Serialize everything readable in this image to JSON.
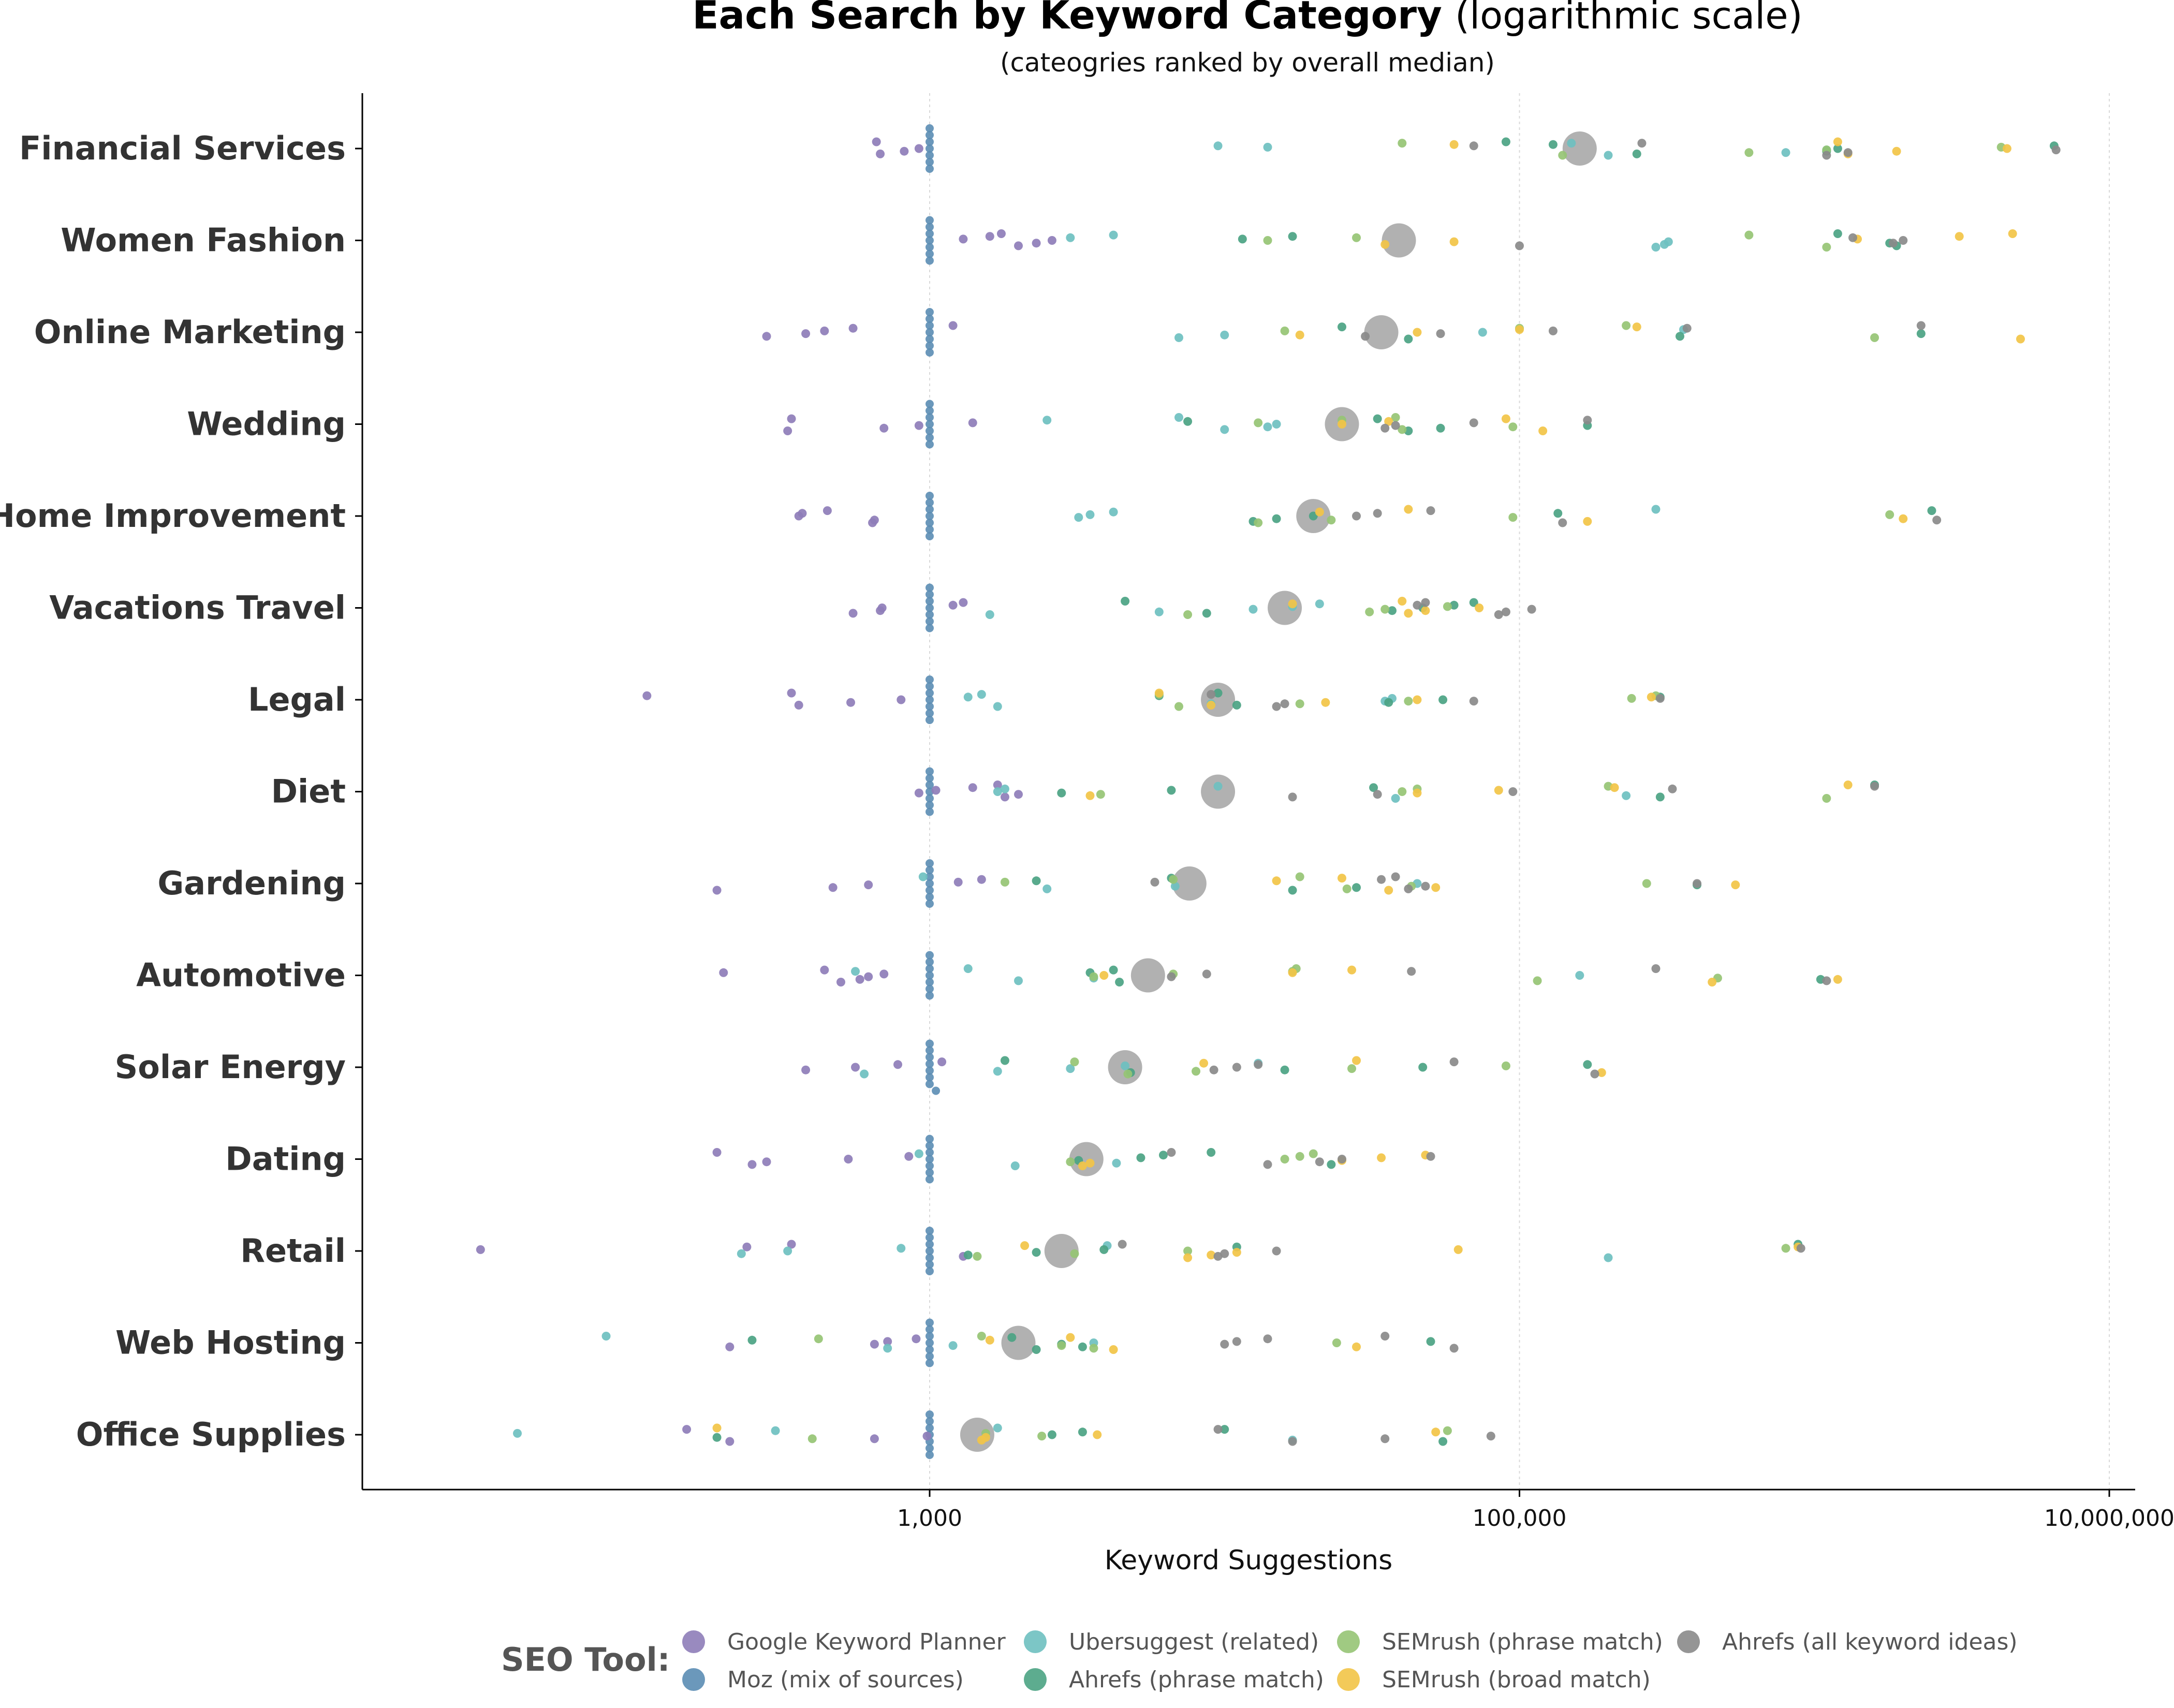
{
  "chart_data": {
    "type": "scatter",
    "title": "Each Search by Keyword Category",
    "title_suffix": "(logarithmic scale)",
    "subtitle": "(cateogries ranked by overall median)",
    "xlabel": "Keyword Suggestions",
    "x_scale": "log10",
    "xlim": [
      10,
      10000000
    ],
    "x_ticks": [
      {
        "value": 1000,
        "label": "1,000"
      },
      {
        "value": 100000,
        "label": "100,000"
      },
      {
        "value": 10000000,
        "label": "10,000,000"
      }
    ],
    "grid": {
      "vertical_major": true,
      "horizontal": false
    },
    "legend": {
      "title": "SEO Tool:",
      "position": "bottom",
      "items": [
        {
          "key": "gkp",
          "name": "Google Keyword Planner",
          "color": "#8E7DB8"
        },
        {
          "key": "moz",
          "name": "Moz (mix of sources)",
          "color": "#5B8DB4"
        },
        {
          "key": "ubs",
          "name": "Ubersuggest (related)",
          "color": "#6EC0C0"
        },
        {
          "key": "ahp",
          "name": "Ahrefs (phrase match)",
          "color": "#4BA383"
        },
        {
          "key": "smp",
          "name": "SEMrush (phrase match)",
          "color": "#96C474"
        },
        {
          "key": "smb",
          "name": "SEMrush (broad match)",
          "color": "#F2C447"
        },
        {
          "key": "aha",
          "name": "Ahrefs (all keyword ideas)",
          "color": "#8A8A8A"
        }
      ]
    },
    "median_marker_color": "#A9A9A9",
    "categories": [
      {
        "name": "Financial Services",
        "median": 160000,
        "values": {
          "gkp": [
            660,
            680,
            820,
            920
          ],
          "moz": [
            1000,
            1000,
            1000,
            1000,
            1000,
            1000,
            1000
          ],
          "ubs": [
            9500,
            150000,
            200000,
            800000,
            1100000,
            14000
          ],
          "ahp": [
            130000,
            90000,
            250000,
            1100000,
            1200000,
            6500000
          ],
          "smp": [
            40000,
            140000,
            600000,
            1100000,
            4300000
          ],
          "smb": [
            60000,
            1200000,
            1300000,
            1900000,
            4500000
          ],
          "aha": [
            70000,
            260000,
            1100000,
            1300000,
            6600000
          ]
        }
      },
      {
        "name": "Women Fashion",
        "median": 39000,
        "values": {
          "gkp": [
            1300,
            1600,
            1750,
            2000,
            2300,
            2600
          ],
          "moz": [
            1000,
            1000,
            1000,
            1000,
            1000,
            1000,
            1000
          ],
          "ubs": [
            3000,
            4200,
            290000,
            310000,
            320000
          ],
          "ahp": [
            11500,
            17000,
            1200000,
            1900000,
            1800000
          ],
          "smp": [
            14000,
            28000,
            600000,
            1100000
          ],
          "smb": [
            35000,
            60000,
            1400000,
            3100000,
            4700000
          ],
          "aha": [
            100000,
            1850000,
            2000000,
            1350000
          ]
        }
      },
      {
        "name": "Online Marketing",
        "median": 34000,
        "values": {
          "gkp": [
            280,
            380,
            440,
            550,
            1200
          ],
          "moz": [
            1000,
            1000,
            1000,
            1000,
            1000,
            1000,
            1000
          ],
          "ubs": [
            7000,
            10000,
            75000,
            360000
          ],
          "ahp": [
            25000,
            42000,
            350000,
            2300000
          ],
          "smp": [
            16000,
            100000,
            230000,
            1600000
          ],
          "smb": [
            18000,
            45000,
            100000,
            250000,
            5000000
          ],
          "aha": [
            30000,
            54000,
            130000,
            370000,
            2300000
          ]
        }
      },
      {
        "name": "Wedding",
        "median": 25000,
        "values": {
          "gkp": [
            340,
            330,
            700,
            920,
            1400
          ],
          "moz": [
            1000,
            1000,
            1000,
            1000,
            1000,
            1000,
            1000
          ],
          "ubs": [
            2500,
            7000,
            10000,
            14000,
            15000
          ],
          "ahp": [
            7500,
            33000,
            42000,
            54000,
            170000
          ],
          "smp": [
            13000,
            25000,
            38000,
            40000,
            95000
          ],
          "smb": [
            25000,
            36000,
            90000,
            120000
          ],
          "aha": [
            35000,
            38000,
            70000,
            170000
          ]
        }
      },
      {
        "name": "Home Improvement",
        "median": 20000,
        "values": {
          "gkp": [
            360,
            370,
            450,
            640,
            650
          ],
          "moz": [
            1000,
            1000,
            1000,
            1000,
            1000,
            1000,
            1000
          ],
          "ubs": [
            3200,
            3500,
            4200,
            290000
          ],
          "ahp": [
            12500,
            15000,
            20000,
            135000,
            2500000
          ],
          "smp": [
            13000,
            23000,
            95000,
            1800000
          ],
          "smb": [
            21000,
            42000,
            170000,
            2000000
          ],
          "aha": [
            28000,
            33000,
            50000,
            140000,
            2600000
          ]
        }
      },
      {
        "name": "Vacations Travel",
        "median": 16000,
        "values": {
          "gkp": [
            550,
            680,
            690,
            1200,
            1300
          ],
          "moz": [
            1000,
            1000,
            1000,
            1000,
            1000,
            1000,
            1000
          ],
          "ubs": [
            1600,
            6000,
            12500,
            17000,
            21000
          ],
          "ahp": [
            4600,
            8700,
            37000,
            47000,
            60000,
            70000
          ],
          "smp": [
            7500,
            31000,
            35000,
            57000
          ],
          "smb": [
            17000,
            40000,
            42000,
            48000,
            73000
          ],
          "aha": [
            45000,
            48000,
            85000,
            90000,
            110000
          ]
        }
      },
      {
        "name": "Legal",
        "median": 9500,
        "values": {
          "gkp": [
            110,
            340,
            360,
            540,
            800
          ],
          "moz": [
            1000,
            1000,
            1000,
            1000,
            1000,
            1000,
            1000
          ],
          "ubs": [
            1350,
            1500,
            1700,
            9000,
            35000,
            37000
          ],
          "ahp": [
            6000,
            9500,
            11000,
            36000,
            55000,
            300000
          ],
          "smp": [
            6000,
            7000,
            18000,
            42000,
            240000,
            290000
          ],
          "smb": [
            6000,
            9000,
            22000,
            45000,
            280000
          ],
          "aha": [
            9000,
            15000,
            16000,
            70000,
            300000
          ]
        }
      },
      {
        "name": "Diet",
        "median": 9500,
        "values": {
          "gkp": [
            920,
            1050,
            1400,
            1700,
            1800,
            2000
          ],
          "moz": [
            1000,
            1000,
            1000,
            1000,
            1000,
            1000,
            1000
          ],
          "ubs": [
            1700,
            1800,
            9500,
            38000,
            230000
          ],
          "ahp": [
            2800,
            6600,
            32000,
            1600000,
            300000
          ],
          "smp": [
            3800,
            40000,
            45000,
            200000,
            1100000
          ],
          "smb": [
            3500,
            45000,
            85000,
            210000,
            1300000
          ],
          "aha": [
            17000,
            33000,
            95000,
            330000,
            1600000
          ]
        }
      },
      {
        "name": "Gardening",
        "median": 7600,
        "values": {
          "gkp": [
            190,
            470,
            620,
            1250,
            1500
          ],
          "moz": [
            1000,
            1000,
            1000,
            1000,
            1000,
            1000,
            1000
          ],
          "ubs": [
            950,
            2500,
            6800,
            45000
          ],
          "ahp": [
            2300,
            6600,
            17000,
            28000,
            400000
          ],
          "smp": [
            1800,
            6700,
            18000,
            26000,
            43000,
            270000
          ],
          "smb": [
            15000,
            25000,
            36000,
            52000,
            540000
          ],
          "aha": [
            5800,
            34000,
            38000,
            42000,
            48000,
            400000
          ]
        }
      },
      {
        "name": "Automotive",
        "median": 5500,
        "values": {
          "gkp": [
            200,
            440,
            500,
            580,
            620,
            700
          ],
          "moz": [
            1000,
            1000,
            1000,
            1000,
            1000,
            1000,
            1000
          ],
          "ubs": [
            560,
            1350,
            2000,
            3600,
            160000
          ],
          "ahp": [
            3500,
            4200,
            4400,
            1050000
          ],
          "smp": [
            3600,
            6700,
            17000,
            17500,
            115000,
            470000
          ],
          "smb": [
            3900,
            17000,
            27000,
            450000,
            1200000
          ],
          "aha": [
            6600,
            8700,
            43000,
            290000,
            1100000
          ]
        }
      },
      {
        "name": "Solar Energy",
        "median": 4600,
        "values": {
          "gkp": [
            380,
            560,
            780,
            1100
          ],
          "moz": [
            1000,
            1000,
            1000,
            1000,
            1000,
            1000,
            1000,
            1050
          ],
          "ubs": [
            600,
            1700,
            3000,
            4600,
            13000
          ],
          "ahp": [
            1800,
            4800,
            16000,
            47000,
            170000
          ],
          "smp": [
            3100,
            4700,
            8000,
            27000,
            90000
          ],
          "smb": [
            8500,
            28000,
            190000
          ],
          "aha": [
            9200,
            11000,
            13000,
            60000,
            180000
          ]
        }
      },
      {
        "name": "Dating",
        "median": 3400,
        "values": {
          "gkp": [
            190,
            250,
            280,
            530,
            850
          ],
          "moz": [
            1000,
            1000,
            1000,
            1000,
            1000,
            1000,
            1000
          ],
          "ubs": [
            920,
            1950,
            4300
          ],
          "ahp": [
            3200,
            5200,
            6200,
            9000,
            23000
          ],
          "smp": [
            3000,
            16000,
            18000,
            20000
          ],
          "smb": [
            3300,
            3500,
            25000,
            34000,
            48000
          ],
          "aha": [
            6600,
            14000,
            21000,
            25000,
            50000
          ]
        }
      },
      {
        "name": "Retail",
        "median": 2800,
        "values": {
          "gkp": [
            30,
            240,
            340,
            1300
          ],
          "moz": [
            1000,
            1000,
            1000,
            1000,
            1000,
            1000,
            1000
          ],
          "ubs": [
            230,
            330,
            800,
            4000,
            200000
          ],
          "ahp": [
            1350,
            2300,
            3900,
            11000,
            880000
          ],
          "smp": [
            1450,
            3100,
            7500,
            800000
          ],
          "smb": [
            2100,
            7500,
            9000,
            11000,
            62000,
            880000
          ],
          "aha": [
            4500,
            9500,
            10000,
            15000,
            900000
          ]
        }
      },
      {
        "name": "Web Hosting",
        "median": 2000,
        "values": {
          "gkp": [
            210,
            650,
            720,
            900
          ],
          "moz": [
            1000,
            1000,
            1000,
            1000,
            1000,
            1000,
            1000
          ],
          "ubs": [
            80,
            720,
            1200,
            3600
          ],
          "ahp": [
            250,
            1900,
            2300,
            3300,
            2800,
            50000
          ],
          "smp": [
            420,
            1500,
            3600,
            2800,
            24000
          ],
          "smb": [
            1600,
            3000,
            4200,
            28000
          ],
          "aha": [
            10000,
            11000,
            14000,
            35000,
            60000
          ]
        }
      },
      {
        "name": "Office Supplies",
        "median": 1450,
        "values": {
          "gkp": [
            150,
            210,
            650,
            980
          ],
          "moz": [
            1000,
            1000,
            1000,
            1000,
            1000,
            1000,
            1000
          ],
          "ubs": [
            40,
            300,
            1700,
            17000
          ],
          "ahp": [
            190,
            2600,
            3300,
            10000,
            55000
          ],
          "smp": [
            400,
            2400,
            1550,
            57000
          ],
          "smb": [
            190,
            1500,
            1550,
            3700,
            52000
          ],
          "aha": [
            9500,
            17000,
            35000,
            80000
          ]
        }
      }
    ]
  }
}
